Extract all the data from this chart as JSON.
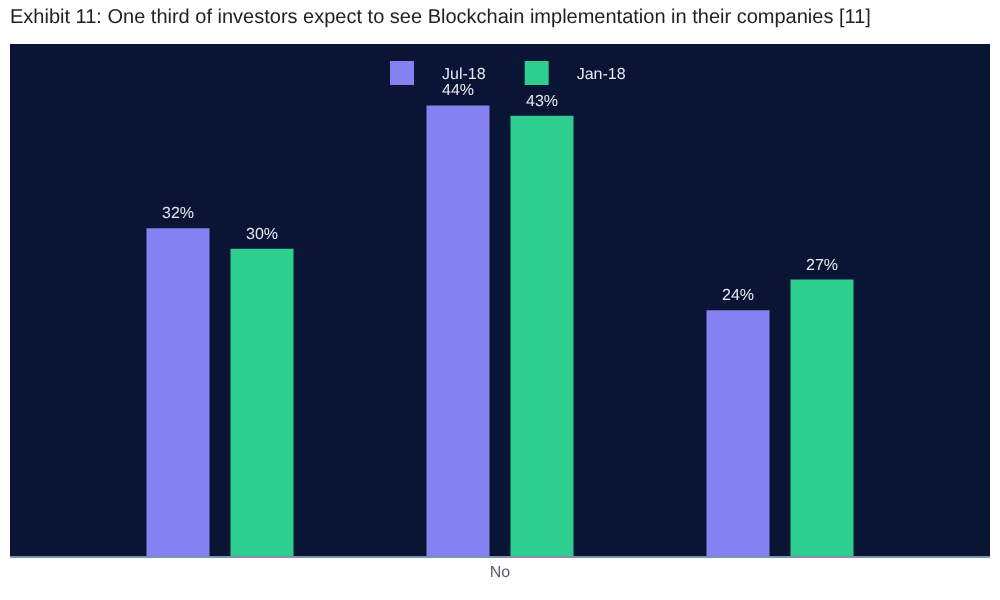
{
  "chart_data": {
    "type": "bar",
    "title": "Exhibit 11: One third of investors expect to see Blockchain implementation in their companies [11]",
    "categories": [
      null,
      "No",
      null
    ],
    "series": [
      {
        "name": "Jul-18",
        "color": "#8482f0",
        "values": [
          32,
          44,
          24
        ],
        "value_labels": [
          "32%",
          "44%",
          "24%"
        ]
      },
      {
        "name": "Jan-18",
        "color": "#2ecf8e",
        "values": [
          30,
          43,
          27
        ],
        "value_labels": [
          "30%",
          "43%",
          "27%"
        ]
      }
    ],
    "ylim": [
      0,
      50
    ],
    "legend": "top",
    "grid": false
  }
}
